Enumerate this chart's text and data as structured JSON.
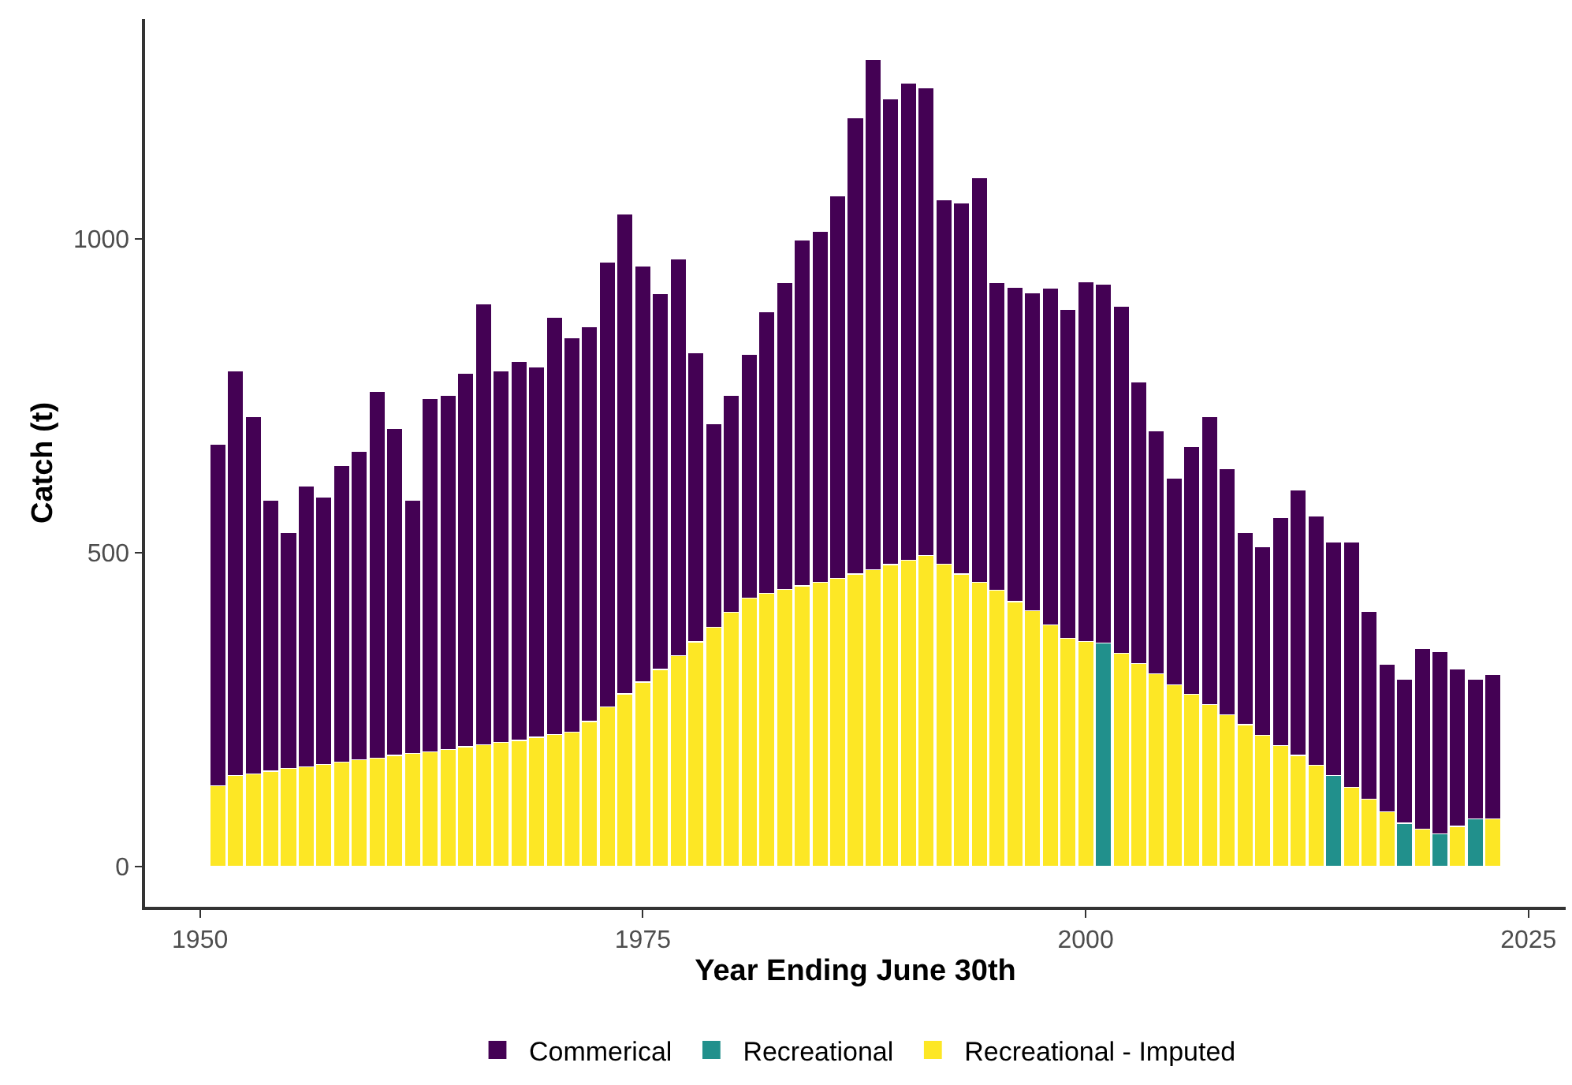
{
  "chart_data": {
    "type": "bar",
    "stacked": true,
    "xlabel": "Year Ending June 30th",
    "ylabel": "Catch (t)",
    "x": [
      1951,
      1952,
      1953,
      1954,
      1955,
      1956,
      1957,
      1958,
      1959,
      1960,
      1961,
      1962,
      1963,
      1964,
      1965,
      1966,
      1967,
      1968,
      1969,
      1970,
      1971,
      1972,
      1973,
      1974,
      1975,
      1976,
      1977,
      1978,
      1979,
      1980,
      1981,
      1982,
      1983,
      1984,
      1985,
      1986,
      1987,
      1988,
      1989,
      1990,
      1991,
      1992,
      1993,
      1994,
      1995,
      1996,
      1997,
      1998,
      1999,
      2000,
      2001,
      2002,
      2003,
      2004,
      2005,
      2006,
      2007,
      2008,
      2009,
      2010,
      2011,
      2012,
      2013,
      2014,
      2015,
      2016,
      2017,
      2018,
      2019,
      2020,
      2021,
      2022,
      2023
    ],
    "series": [
      {
        "name": "Recreational - Imputed",
        "color": "#fde725",
        "values": [
          129,
          145,
          148,
          152,
          156,
          159,
          163,
          166,
          170,
          173,
          177,
          180,
          183,
          187,
          191,
          194,
          198,
          201,
          206,
          210,
          214,
          231,
          254,
          275,
          294,
          314,
          336,
          358,
          381,
          405,
          428,
          435,
          441,
          447,
          453,
          459,
          466,
          473,
          481,
          488,
          495,
          482,
          466,
          453,
          440,
          422,
          408,
          385,
          364,
          359,
          null,
          340,
          323,
          307,
          290,
          274,
          258,
          242,
          226,
          209,
          193,
          177,
          161,
          null,
          126,
          107,
          87,
          null,
          60,
          null,
          64,
          null,
          76
        ]
      },
      {
        "name": "Recreational",
        "color": "#21908c",
        "values": [
          null,
          null,
          null,
          null,
          null,
          null,
          null,
          null,
          null,
          null,
          null,
          null,
          null,
          null,
          null,
          null,
          null,
          null,
          null,
          null,
          null,
          null,
          null,
          null,
          null,
          null,
          null,
          null,
          null,
          null,
          null,
          null,
          null,
          null,
          null,
          null,
          null,
          null,
          null,
          null,
          null,
          null,
          null,
          null,
          null,
          null,
          null,
          null,
          null,
          null,
          356,
          null,
          null,
          null,
          null,
          null,
          null,
          null,
          null,
          null,
          null,
          null,
          null,
          145,
          null,
          null,
          null,
          69,
          null,
          52,
          null,
          76,
          null
        ]
      },
      {
        "name": "Commerical",
        "color": "#440154",
        "values": [
          544,
          644,
          568,
          432,
          376,
          447,
          425,
          473,
          491,
          584,
          521,
          404,
          563,
          563,
          595,
          702,
          592,
          604,
          590,
          665,
          628,
          629,
          709,
          764,
          663,
          599,
          632,
          460,
          324,
          346,
          388,
          448,
          489,
          551,
          559,
          609,
          727,
          813,
          742,
          760,
          745,
          580,
          591,
          644,
          490,
          501,
          506,
          536,
          524,
          572,
          572,
          553,
          449,
          387,
          329,
          395,
          458,
          392,
          306,
          300,
          363,
          423,
          398,
          372,
          391,
          300,
          235,
          229,
          288,
          290,
          251,
          222,
          230
        ]
      }
    ],
    "xlim": [
      1946.9,
      2027.1
    ],
    "xticks": [
      1950,
      1975,
      2000,
      2025
    ],
    "ylim": [
      -64,
      1350
    ],
    "yticks": [
      0,
      500,
      1000
    ],
    "legend": "bottom"
  }
}
